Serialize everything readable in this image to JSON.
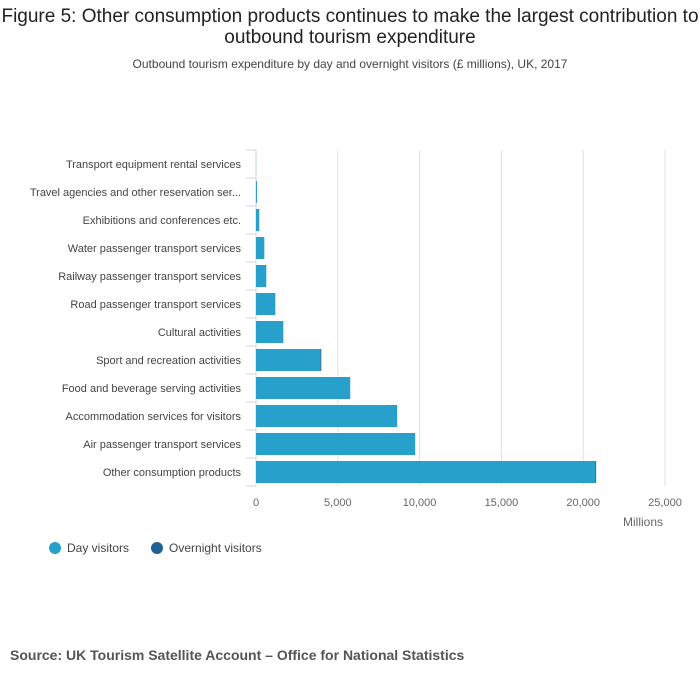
{
  "title": "Figure 5: Other consumption products continues to make the largest contribution to outbound tourism expenditure",
  "subtitle": "Outbound tourism expenditure by day and overnight visitors (£ millions), UK, 2017",
  "source": "Source: UK Tourism Satellite Account – Office for National Statistics",
  "chart_data": {
    "type": "bar",
    "orientation": "horizontal",
    "stacked": true,
    "categories": [
      "Transport equipment rental services",
      "Travel agencies and other reservation ser...",
      "Exhibitions and conferences etc.",
      "Water passenger transport services",
      "Railway passenger transport services",
      "Road passenger transport services",
      "Cultural activities",
      "Sport and recreation activities",
      "Food and beverage serving activities",
      "Accommodation services for visitors",
      "Air passenger transport services",
      "Other consumption products"
    ],
    "series": [
      {
        "name": "Day visitors",
        "color": "#27a0cc",
        "values": [
          5,
          60,
          200,
          510,
          630,
          1180,
          1670,
          3930,
          5760,
          8630,
          9730,
          20730
        ]
      },
      {
        "name": "Overnight visitors",
        "color": "#206095",
        "values": [
          0,
          0,
          0,
          0,
          0,
          0,
          0,
          60,
          0,
          0,
          0,
          60
        ]
      }
    ],
    "xlabel": "Millions",
    "xlim": [
      0,
      25000
    ],
    "xticks": [
      0,
      5000,
      10000,
      15000,
      20000,
      25000
    ],
    "xtick_labels": [
      "0",
      "5,000",
      "10,000",
      "15,000",
      "20,000",
      "25,000"
    ],
    "grid": true,
    "legend_position": "bottom-left"
  }
}
